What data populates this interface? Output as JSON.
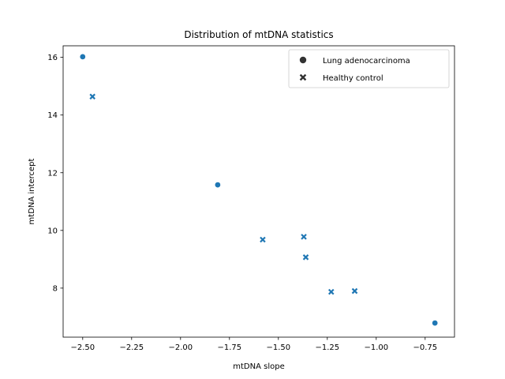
{
  "chart_data": {
    "type": "scatter",
    "title": "Distribution of mtDNA statistics",
    "xlabel": "mtDNA slope",
    "ylabel": "mtDNA intercept",
    "xlim": [
      -2.6,
      -0.6
    ],
    "ylim": [
      6.3,
      16.4
    ],
    "xticks": [
      -2.5,
      -2.25,
      -2.0,
      -1.75,
      -1.5,
      -1.25,
      -1.0,
      -0.75
    ],
    "xtick_labels": [
      "−2.50",
      "−2.25",
      "−2.00",
      "−1.75",
      "−1.50",
      "−1.25",
      "−1.00",
      "−0.75"
    ],
    "yticks": [
      8,
      10,
      12,
      14,
      16
    ],
    "ytick_labels": [
      "8",
      "10",
      "12",
      "14",
      "16"
    ],
    "grid": false,
    "legend_position": "top-right",
    "marker_color": "#1f77b4",
    "series": [
      {
        "name": "Lung adenocarcinoma",
        "marker": "circle",
        "points": [
          {
            "x": -2.5,
            "y": 16.02
          },
          {
            "x": -1.81,
            "y": 11.58
          },
          {
            "x": -0.7,
            "y": 6.79
          }
        ]
      },
      {
        "name": "Healthy control",
        "marker": "x",
        "points": [
          {
            "x": -2.45,
            "y": 14.64
          },
          {
            "x": -1.58,
            "y": 9.68
          },
          {
            "x": -1.37,
            "y": 9.78
          },
          {
            "x": -1.36,
            "y": 9.07
          },
          {
            "x": -1.23,
            "y": 7.87
          },
          {
            "x": -1.11,
            "y": 7.9
          }
        ]
      }
    ]
  }
}
